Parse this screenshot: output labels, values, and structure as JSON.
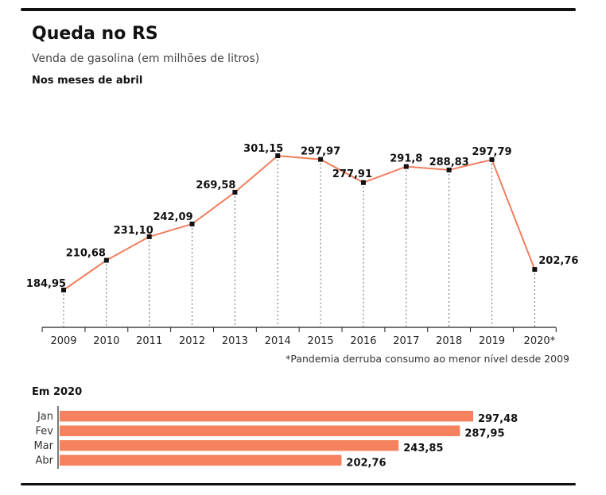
{
  "header": {
    "title": "Queda no RS",
    "subtitle": "Venda de gasolina (em milhões de litros)"
  },
  "footnote": "*Pandemia derruba consumo ao menor nível desde 2009",
  "colors": {
    "line": "#f07e5e",
    "bar": "#f4825f",
    "marker": "#111111",
    "text": "#111111"
  },
  "chart_data": [
    {
      "type": "line",
      "title": "Nos meses de abril",
      "categories": [
        "2009",
        "2010",
        "2011",
        "2012",
        "2013",
        "2014",
        "2015",
        "2016",
        "2017",
        "2018",
        "2019",
        "2020*"
      ],
      "values": [
        184.95,
        210.68,
        231.1,
        242.09,
        269.58,
        301.15,
        297.97,
        277.91,
        291.8,
        288.83,
        297.79,
        202.76
      ],
      "labels": [
        "184,95",
        "210,68",
        "231,10",
        "242,09",
        "269,58",
        "301,15",
        "297,97",
        "277,91",
        "291,8",
        "288,83",
        "297,79",
        "202,76"
      ],
      "ylim": [
        150,
        310
      ],
      "grid": false
    },
    {
      "type": "bar",
      "orientation": "horizontal",
      "title": "Em 2020",
      "categories": [
        "Jan",
        "Fev",
        "Mar",
        "Abr"
      ],
      "values": [
        297.48,
        287.95,
        243.85,
        202.76
      ],
      "labels": [
        "297,48",
        "287,95",
        "243,85",
        "202,76"
      ],
      "xlim": [
        0,
        297.48
      ]
    }
  ]
}
